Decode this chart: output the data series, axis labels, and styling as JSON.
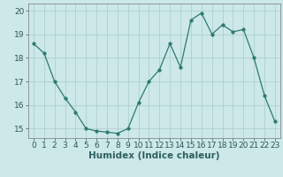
{
  "x": [
    0,
    1,
    2,
    3,
    4,
    5,
    6,
    7,
    8,
    9,
    10,
    11,
    12,
    13,
    14,
    15,
    16,
    17,
    18,
    19,
    20,
    21,
    22,
    23
  ],
  "y": [
    18.6,
    18.2,
    17.0,
    16.3,
    15.7,
    15.0,
    14.9,
    14.85,
    14.8,
    15.0,
    16.1,
    17.0,
    17.5,
    18.6,
    17.6,
    19.6,
    19.9,
    19.0,
    19.4,
    19.1,
    19.2,
    18.0,
    16.4,
    15.3
  ],
  "line_color": "#2d7a6e",
  "marker": "o",
  "marker_size": 2.5,
  "bg_color": "#cce8e8",
  "grid_color": "#b0d0d0",
  "xlabel": "Humidex (Indice chaleur)",
  "xlim": [
    -0.5,
    23.5
  ],
  "ylim": [
    14.6,
    20.3
  ],
  "yticks": [
    15,
    16,
    17,
    18,
    19,
    20
  ],
  "xtick_labels": [
    "0",
    "1",
    "2",
    "3",
    "4",
    "5",
    "6",
    "7",
    "8",
    "9",
    "10",
    "11",
    "12",
    "13",
    "14",
    "15",
    "16",
    "17",
    "18",
    "19",
    "20",
    "21",
    "22",
    "23"
  ],
  "xlabel_fontsize": 7.5,
  "tick_fontsize": 6.5,
  "linewidth": 0.9
}
